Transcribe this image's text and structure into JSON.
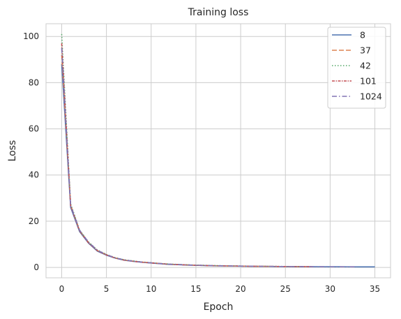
{
  "chart_data": {
    "type": "line",
    "title": "Training loss",
    "xlabel": "Epoch",
    "ylabel": "Loss",
    "xlim": [
      -1.75,
      36.75
    ],
    "ylim": [
      -4.5,
      105.5
    ],
    "xticks": [
      0,
      5,
      10,
      15,
      20,
      25,
      30,
      35
    ],
    "yticks": [
      0,
      20,
      40,
      60,
      80,
      100
    ],
    "grid": true,
    "legend_position": "top-right",
    "series": [
      {
        "name": "8",
        "color": "#4c72b0",
        "dash": "solid",
        "x": [
          0,
          1,
          2,
          3,
          4,
          5,
          6,
          7,
          8,
          9,
          10,
          11,
          12,
          13,
          14,
          15,
          16,
          17,
          18,
          19,
          20,
          21,
          22,
          23,
          24,
          25,
          26,
          27,
          28,
          29,
          30,
          31,
          32,
          33,
          34,
          35
        ],
        "y": [
          88,
          26,
          15.5,
          10.5,
          7,
          5.3,
          4,
          3.1,
          2.6,
          2.2,
          1.9,
          1.6,
          1.3,
          1.2,
          1.0,
          0.9,
          0.8,
          0.7,
          0.65,
          0.6,
          0.55,
          0.5,
          0.45,
          0.42,
          0.4,
          0.38,
          0.35,
          0.33,
          0.31,
          0.3,
          0.28,
          0.27,
          0.26,
          0.25,
          0.24,
          0.23
        ]
      },
      {
        "name": "37",
        "color": "#dd8452",
        "dash": "dashed",
        "x": [
          0,
          1,
          2,
          3,
          4,
          5,
          6,
          7,
          8,
          9,
          10,
          11,
          12,
          13,
          14,
          15,
          16,
          17,
          18,
          19,
          20,
          21,
          22,
          23,
          24,
          25,
          26,
          27,
          28
        ],
        "y": [
          92,
          27,
          16,
          10.8,
          7.3,
          5.5,
          4.1,
          3.2,
          2.7,
          2.3,
          2.0,
          1.7,
          1.4,
          1.25,
          1.1,
          0.95,
          0.85,
          0.75,
          0.7,
          0.62,
          0.58,
          0.52,
          0.48,
          0.45,
          0.42,
          0.4,
          0.37,
          0.35,
          0.33
        ]
      },
      {
        "name": "42",
        "color": "#55a868",
        "dash": "dotted",
        "x": [
          0,
          1,
          2,
          3,
          4,
          5,
          6,
          7,
          8,
          9,
          10,
          11,
          12,
          13,
          14,
          15,
          16,
          17,
          18,
          19,
          20,
          21,
          22,
          23,
          24,
          25,
          26,
          27
        ],
        "y": [
          101,
          27.5,
          16.2,
          11,
          7.5,
          5.6,
          4.2,
          3.3,
          2.8,
          2.35,
          2.05,
          1.7,
          1.45,
          1.3,
          1.1,
          1.0,
          0.9,
          0.8,
          0.72,
          0.65,
          0.6,
          0.55,
          0.5,
          0.46,
          0.43,
          0.41,
          0.38,
          0.36
        ]
      },
      {
        "name": "101",
        "color": "#c44e52",
        "dash": "dashdot-dense",
        "x": [
          0,
          1,
          2,
          3,
          4,
          5,
          6,
          7,
          8,
          9,
          10,
          11,
          12,
          13,
          14,
          15,
          16,
          17,
          18,
          19,
          20,
          21,
          22,
          23,
          24,
          25,
          26,
          27,
          28
        ],
        "y": [
          97,
          26.5,
          15.8,
          10.6,
          7.2,
          5.4,
          4.05,
          3.15,
          2.65,
          2.25,
          1.95,
          1.65,
          1.35,
          1.22,
          1.05,
          0.92,
          0.82,
          0.72,
          0.67,
          0.6,
          0.56,
          0.51,
          0.47,
          0.44,
          0.41,
          0.39,
          0.36,
          0.34,
          0.32
        ]
      },
      {
        "name": "1024",
        "color": "#8172b3",
        "dash": "dashdot",
        "x": [
          0,
          1,
          2,
          3,
          4,
          5,
          6,
          7,
          8,
          9,
          10,
          11,
          12,
          13,
          14,
          15,
          16,
          17,
          18,
          19,
          20,
          21,
          22,
          23,
          24,
          25,
          26,
          27,
          28,
          29,
          30,
          31,
          32,
          33
        ],
        "y": [
          95,
          26.8,
          16.1,
          10.9,
          7.4,
          5.5,
          4.1,
          3.25,
          2.7,
          2.3,
          2.0,
          1.68,
          1.4,
          1.26,
          1.08,
          0.96,
          0.86,
          0.76,
          0.7,
          0.63,
          0.58,
          0.53,
          0.49,
          0.45,
          0.42,
          0.4,
          0.37,
          0.35,
          0.33,
          0.31,
          0.3,
          0.29,
          0.28,
          0.27
        ]
      }
    ]
  }
}
